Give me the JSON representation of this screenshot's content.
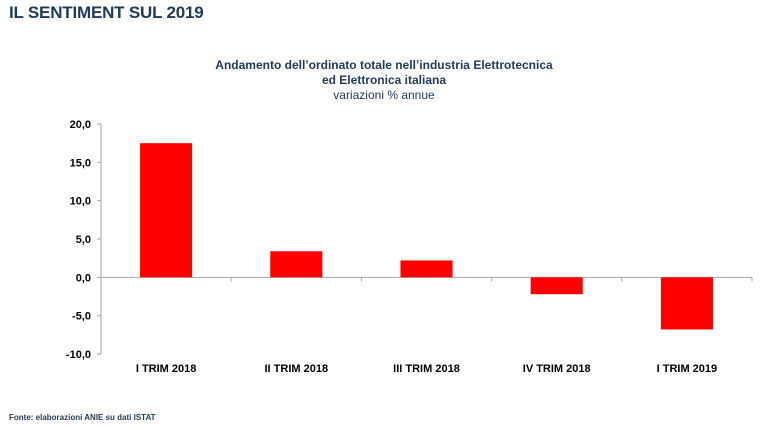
{
  "page": {
    "title": "IL SENTIMENT SUL 2019",
    "source": "Fonte: elaborazioni ANIE su dati ISTAT"
  },
  "chart_data": {
    "type": "bar",
    "title": "Andamento dell’ordinato totale nell’industria Elettrotecnica",
    "title_line2": "ed Elettronica italiana",
    "subtitle": "variazioni % annue",
    "xlabel": "",
    "ylabel": "",
    "categories": [
      "I TRIM 2018",
      "II TRIM 2018",
      "III TRIM 2018",
      "IV TRIM 2018",
      "I TRIM 2019"
    ],
    "values": [
      17.5,
      3.4,
      2.2,
      -2.2,
      -6.8
    ],
    "ylim": [
      -10,
      20
    ],
    "yticks": [
      20,
      15,
      10,
      5,
      0,
      -5,
      -10
    ],
    "ytick_labels": [
      "20,0",
      "15,0",
      "10,0",
      "5,0",
      "0,0",
      "-5,0",
      "-10,0"
    ],
    "grid": false,
    "legend": "none",
    "bar_color": "#ff0000",
    "axis_color": "#a6a6a6"
  }
}
